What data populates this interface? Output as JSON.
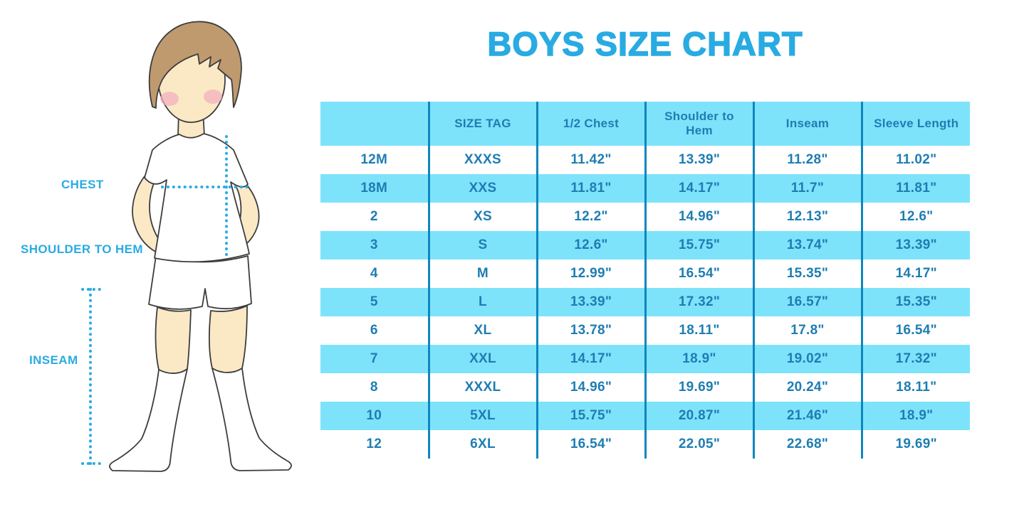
{
  "title": "BOYS SIZE CHART",
  "figure": {
    "chest_label": "CHEST",
    "shoulder_to_hem_label": "SHOULDER TO HEM",
    "inseam_label": "INSEAM"
  },
  "colors": {
    "accent_blue": "#29abe2",
    "table_band_blue": "#7de3fb",
    "table_text_blue": "#1e7db2",
    "table_divider_blue": "#0f86be"
  },
  "chart_data": {
    "type": "table",
    "title": "BOYS SIZE CHART",
    "units": "inches",
    "columns": [
      "",
      "SIZE TAG",
      "1/2 Chest",
      "Shoulder to Hem",
      "Inseam",
      "Sleeve Length"
    ],
    "rows": [
      [
        "12M",
        "XXXS",
        "11.42\"",
        "13.39\"",
        "11.28\"",
        "11.02\""
      ],
      [
        "18M",
        "XXS",
        "11.81\"",
        "14.17\"",
        "11.7\"",
        "11.81\""
      ],
      [
        "2",
        "XS",
        "12.2\"",
        "14.96\"",
        "12.13\"",
        "12.6\""
      ],
      [
        "3",
        "S",
        "12.6\"",
        "15.75\"",
        "13.74\"",
        "13.39\""
      ],
      [
        "4",
        "M",
        "12.99\"",
        "16.54\"",
        "15.35\"",
        "14.17\""
      ],
      [
        "5",
        "L",
        "13.39\"",
        "17.32\"",
        "16.57\"",
        "15.35\""
      ],
      [
        "6",
        "XL",
        "13.78\"",
        "18.11\"",
        "17.8\"",
        "16.54\""
      ],
      [
        "7",
        "XXL",
        "14.17\"",
        "18.9\"",
        "19.02\"",
        "17.32\""
      ],
      [
        "8",
        "XXXL",
        "14.96\"",
        "19.69\"",
        "20.24\"",
        "18.11\""
      ],
      [
        "10",
        "5XL",
        "15.75\"",
        "20.87\"",
        "21.46\"",
        "18.9\""
      ],
      [
        "12",
        "6XL",
        "16.54\"",
        "22.05\"",
        "22.68\"",
        "19.69\""
      ]
    ],
    "layout": {
      "row_striping": "white / light-blue alternating, header band light-blue",
      "grid": "vertical dividers only"
    }
  }
}
